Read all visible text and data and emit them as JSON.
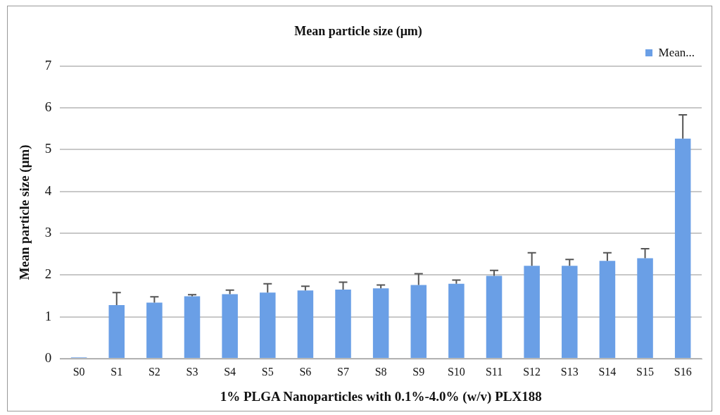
{
  "chart_data": {
    "type": "bar",
    "title": "Mean particle size (μm)",
    "xlabel": "1% PLGA Nanoparticles with 0.1%-4.0% (w/v) PLX188",
    "ylabel": "Mean particle size (μm)",
    "categories": [
      "S0",
      "S1",
      "S2",
      "S3",
      "S4",
      "S5",
      "S6",
      "S7",
      "S8",
      "S9",
      "S10",
      "S11",
      "S12",
      "S13",
      "S14",
      "S15",
      "S16"
    ],
    "series": [
      {
        "name": "Mean...",
        "color": "#6a9fe6",
        "values": [
          0.03,
          1.28,
          1.34,
          1.49,
          1.54,
          1.58,
          1.63,
          1.65,
          1.68,
          1.76,
          1.79,
          1.98,
          2.22,
          2.22,
          2.34,
          2.4,
          5.26
        ],
        "errors": [
          null,
          [
            1.28,
            1.58
          ],
          [
            1.34,
            1.48
          ],
          [
            1.49,
            1.53
          ],
          [
            1.54,
            1.64
          ],
          [
            1.58,
            1.79
          ],
          [
            1.63,
            1.73
          ],
          [
            1.65,
            1.83
          ],
          [
            1.68,
            1.76
          ],
          [
            1.76,
            2.03
          ],
          [
            1.79,
            1.88
          ],
          [
            1.98,
            2.11
          ],
          [
            2.22,
            2.53
          ],
          [
            2.22,
            2.37
          ],
          [
            2.34,
            2.53
          ],
          [
            2.4,
            2.63
          ],
          [
            5.26,
            5.83
          ]
        ]
      }
    ],
    "ylim": [
      0,
      7
    ],
    "yticks": [
      0,
      1,
      2,
      3,
      4,
      5,
      6,
      7
    ],
    "grid": "y",
    "legend": "top right"
  }
}
